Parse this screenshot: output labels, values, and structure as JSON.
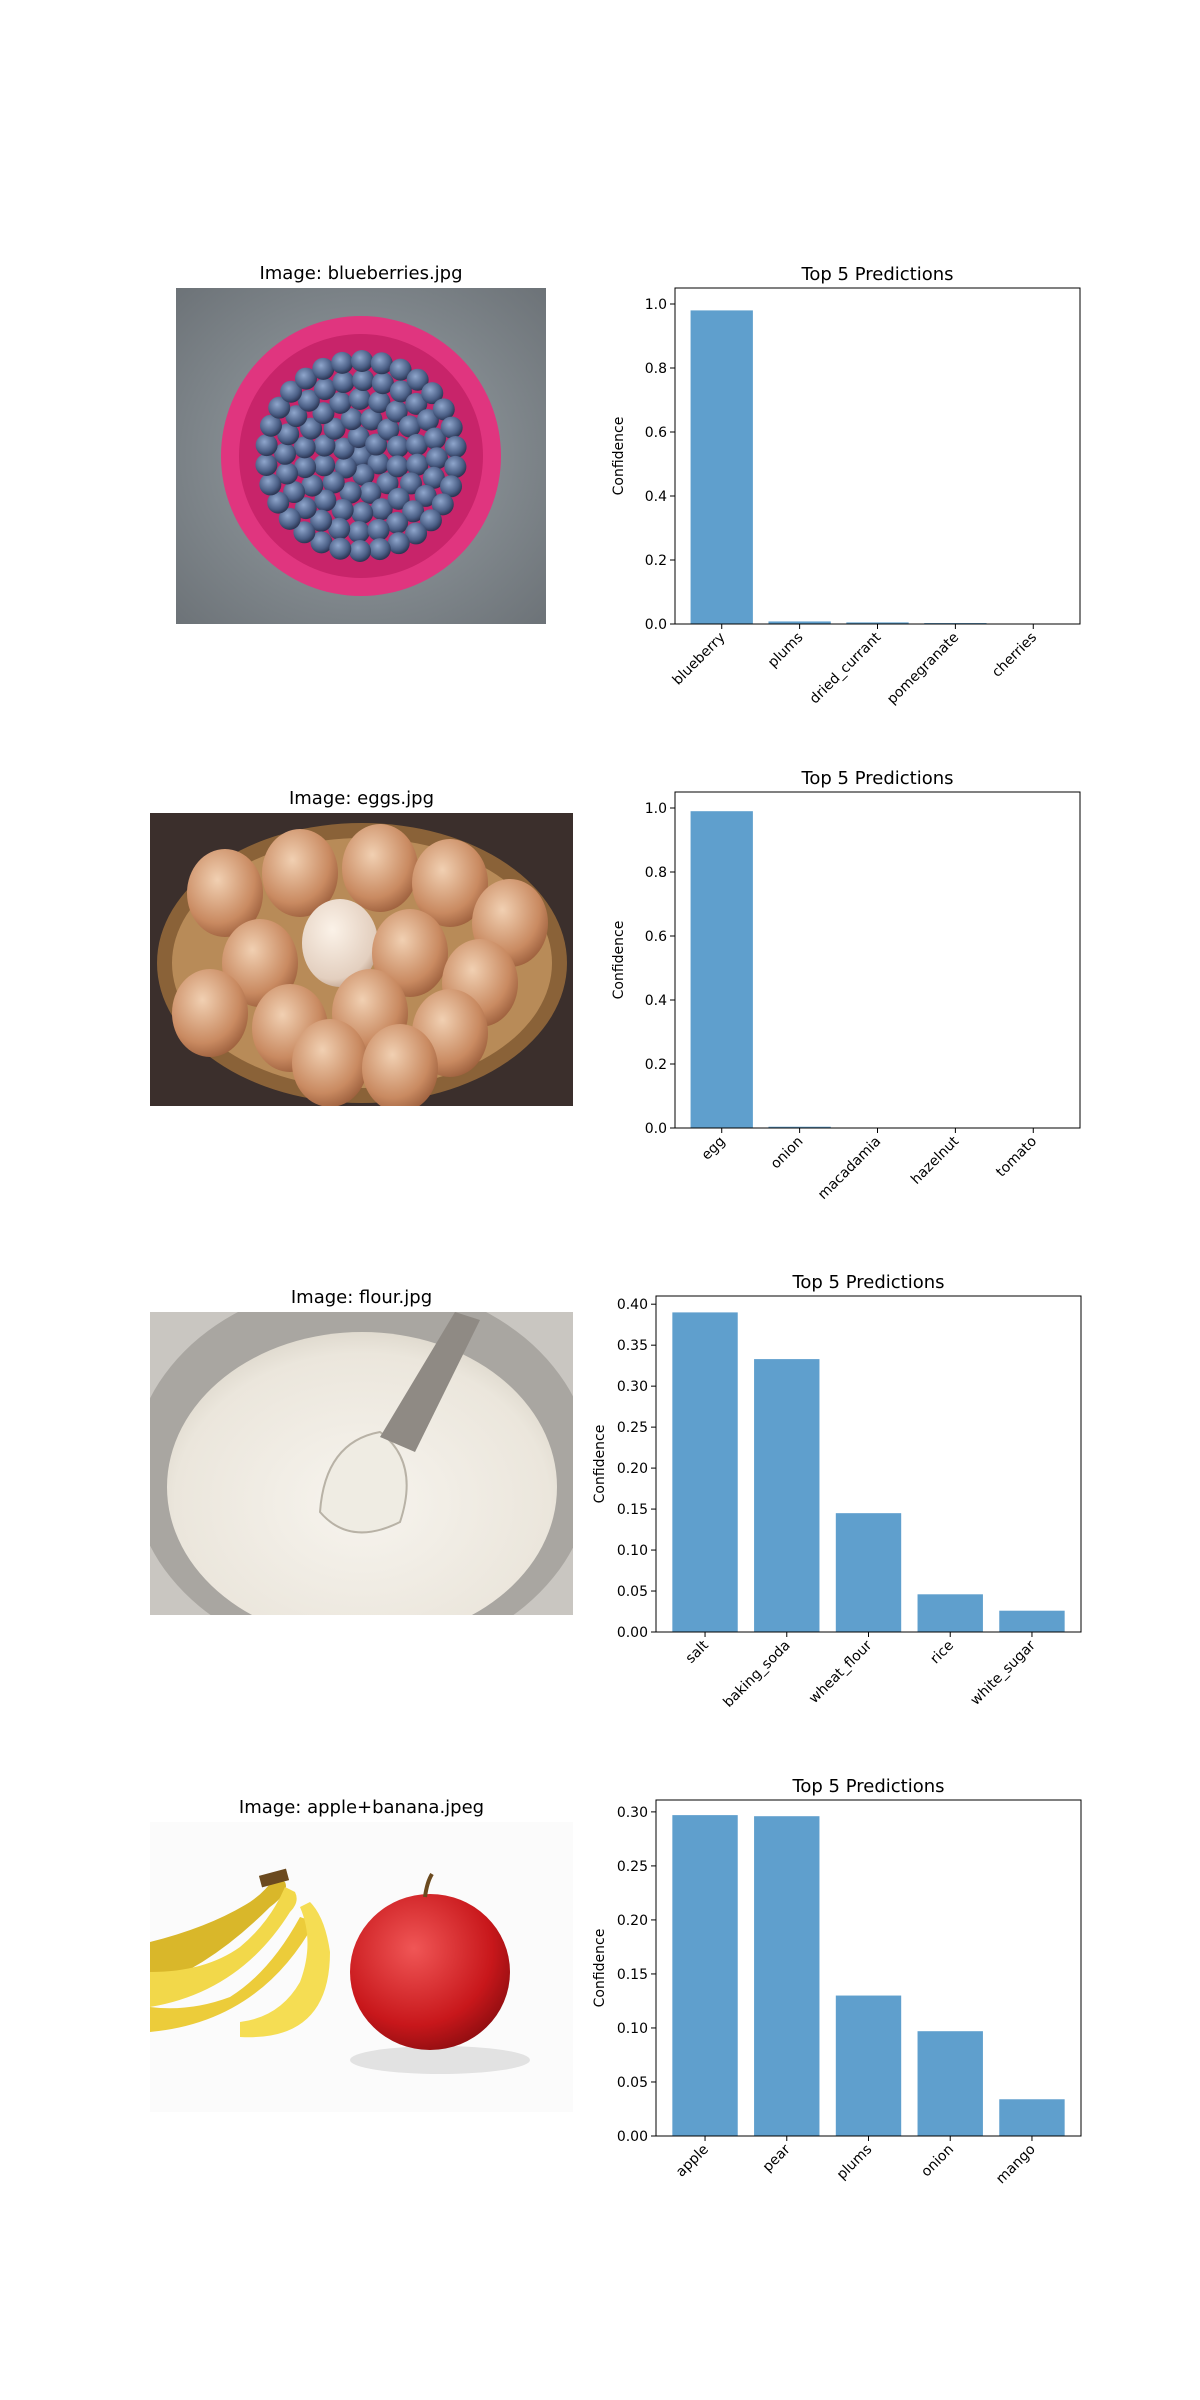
{
  "panels": [
    {
      "image_title": "Image: blueberries.jpg",
      "image_subject": "blueberries in pink bowl",
      "chart_data": {
        "type": "bar",
        "title": "Top 5 Predictions",
        "xlabel": "",
        "ylabel": "Confidence",
        "categories": [
          "blueberry",
          "plums",
          "dried_currant",
          "pomegranate",
          "cherries"
        ],
        "values": [
          0.98,
          0.008,
          0.005,
          0.003,
          0.001
        ],
        "ylim": [
          0,
          1.05
        ],
        "yticks": [
          0.0,
          0.2,
          0.4,
          0.6,
          0.8,
          1.0
        ],
        "ytick_labels": [
          "0.0",
          "0.2",
          "0.4",
          "0.6",
          "0.8",
          "1.0"
        ],
        "grid": false,
        "bar_color": "#5f9fcd"
      }
    },
    {
      "image_title": "Image: eggs.jpg",
      "image_subject": "brown eggs in wicker basket",
      "chart_data": {
        "type": "bar",
        "title": "Top 5 Predictions",
        "xlabel": "",
        "ylabel": "Confidence",
        "categories": [
          "egg",
          "onion",
          "macadamia",
          "hazelnut",
          "tomato"
        ],
        "values": [
          0.99,
          0.004,
          0.001,
          0.0005,
          0.0003
        ],
        "ylim": [
          0,
          1.05
        ],
        "yticks": [
          0.0,
          0.2,
          0.4,
          0.6,
          0.8,
          1.0
        ],
        "ytick_labels": [
          "0.0",
          "0.2",
          "0.4",
          "0.6",
          "0.8",
          "1.0"
        ],
        "grid": false,
        "bar_color": "#5f9fcd"
      }
    },
    {
      "image_title": "Image: flour.jpg",
      "image_subject": "flour in metal bowl with scoop",
      "chart_data": {
        "type": "bar",
        "title": "Top 5 Predictions",
        "xlabel": "",
        "ylabel": "Confidence",
        "categories": [
          "salt",
          "baking_soda",
          "wheat_flour",
          "rice",
          "white_sugar"
        ],
        "values": [
          0.39,
          0.333,
          0.145,
          0.046,
          0.026
        ],
        "ylim": [
          0,
          0.41
        ],
        "yticks": [
          0.0,
          0.05,
          0.1,
          0.15,
          0.2,
          0.25,
          0.3,
          0.35,
          0.4
        ],
        "ytick_labels": [
          "0.00",
          "0.05",
          "0.10",
          "0.15",
          "0.20",
          "0.25",
          "0.30",
          "0.35",
          "0.40"
        ],
        "grid": false,
        "bar_color": "#5f9fcd"
      }
    },
    {
      "image_title": "Image: apple+banana.jpeg",
      "image_subject": "bananas and red apple",
      "chart_data": {
        "type": "bar",
        "title": "Top 5 Predictions",
        "xlabel": "",
        "ylabel": "Confidence",
        "categories": [
          "apple",
          "pear",
          "plums",
          "onion",
          "mango"
        ],
        "values": [
          0.297,
          0.296,
          0.13,
          0.097,
          0.034
        ],
        "ylim": [
          0,
          0.311
        ],
        "yticks": [
          0.0,
          0.05,
          0.1,
          0.15,
          0.2,
          0.25,
          0.3
        ],
        "ytick_labels": [
          "0.00",
          "0.05",
          "0.10",
          "0.15",
          "0.20",
          "0.25",
          "0.30"
        ],
        "grid": false,
        "bar_color": "#5f9fcd"
      }
    }
  ]
}
